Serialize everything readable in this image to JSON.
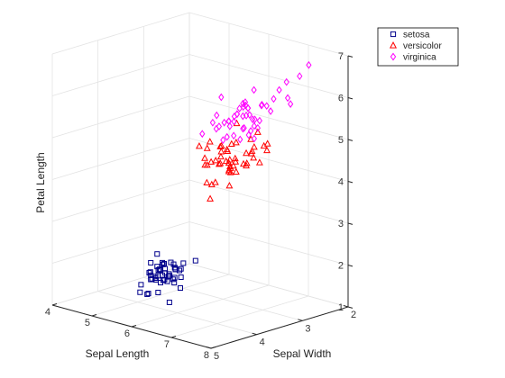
{
  "chart_data": {
    "type": "scatter3d",
    "title": "",
    "xlabel": "Sepal Length",
    "ylabel": "Sepal Width",
    "zlabel": "Petal Length",
    "xlim": [
      4,
      8
    ],
    "ylim": [
      2,
      5
    ],
    "zlim": [
      1,
      7
    ],
    "xticks": [
      4,
      5,
      6,
      7,
      8
    ],
    "yticks": [
      2,
      3,
      4,
      5
    ],
    "zticks": [
      1,
      2,
      3,
      4,
      5,
      6,
      7
    ],
    "grid": true,
    "legend_position": "top-right",
    "series": [
      {
        "name": "setosa",
        "marker": "square",
        "color": "#00008b",
        "points": [
          [
            5.1,
            3.5,
            1.4
          ],
          [
            4.9,
            3.0,
            1.4
          ],
          [
            4.7,
            3.2,
            1.3
          ],
          [
            4.6,
            3.1,
            1.5
          ],
          [
            5.0,
            3.6,
            1.4
          ],
          [
            5.4,
            3.9,
            1.7
          ],
          [
            4.6,
            3.4,
            1.4
          ],
          [
            5.0,
            3.4,
            1.5
          ],
          [
            4.4,
            2.9,
            1.4
          ],
          [
            4.9,
            3.1,
            1.5
          ],
          [
            5.4,
            3.7,
            1.5
          ],
          [
            4.8,
            3.4,
            1.6
          ],
          [
            4.8,
            3.0,
            1.4
          ],
          [
            4.3,
            3.0,
            1.1
          ],
          [
            5.8,
            4.0,
            1.2
          ],
          [
            5.7,
            4.4,
            1.5
          ],
          [
            5.4,
            3.9,
            1.3
          ],
          [
            5.1,
            3.5,
            1.4
          ],
          [
            5.7,
            3.8,
            1.7
          ],
          [
            5.1,
            3.8,
            1.5
          ],
          [
            5.4,
            3.4,
            1.7
          ],
          [
            5.1,
            3.7,
            1.5
          ],
          [
            4.6,
            3.6,
            1.0
          ],
          [
            5.1,
            3.3,
            1.7
          ],
          [
            4.8,
            3.4,
            1.9
          ],
          [
            5.0,
            3.0,
            1.6
          ],
          [
            5.0,
            3.4,
            1.6
          ],
          [
            5.2,
            3.5,
            1.5
          ],
          [
            5.2,
            3.4,
            1.4
          ],
          [
            4.7,
            3.2,
            1.6
          ],
          [
            4.8,
            3.1,
            1.6
          ],
          [
            5.4,
            3.4,
            1.5
          ],
          [
            5.2,
            4.1,
            1.5
          ],
          [
            5.5,
            4.2,
            1.4
          ],
          [
            4.9,
            3.1,
            1.5
          ],
          [
            5.0,
            3.2,
            1.2
          ],
          [
            5.5,
            3.5,
            1.3
          ],
          [
            4.9,
            3.6,
            1.4
          ],
          [
            4.4,
            3.0,
            1.3
          ],
          [
            5.1,
            3.4,
            1.5
          ],
          [
            5.0,
            3.5,
            1.3
          ],
          [
            4.5,
            2.3,
            1.3
          ],
          [
            4.4,
            3.2,
            1.3
          ],
          [
            5.0,
            3.5,
            1.6
          ],
          [
            5.1,
            3.8,
            1.9
          ],
          [
            4.8,
            3.0,
            1.4
          ],
          [
            5.1,
            3.8,
            1.6
          ],
          [
            4.6,
            3.2,
            1.4
          ],
          [
            5.3,
            3.7,
            1.5
          ],
          [
            5.0,
            3.3,
            1.4
          ]
        ]
      },
      {
        "name": "versicolor",
        "marker": "triangle",
        "color": "#ff0000",
        "points": [
          [
            7.0,
            3.2,
            4.7
          ],
          [
            6.4,
            3.2,
            4.5
          ],
          [
            6.9,
            3.1,
            4.9
          ],
          [
            5.5,
            2.3,
            4.0
          ],
          [
            6.5,
            2.8,
            4.6
          ],
          [
            5.7,
            2.8,
            4.5
          ],
          [
            6.3,
            3.3,
            4.7
          ],
          [
            4.9,
            2.4,
            3.3
          ],
          [
            6.6,
            2.9,
            4.6
          ],
          [
            5.2,
            2.7,
            3.9
          ],
          [
            5.0,
            2.0,
            3.5
          ],
          [
            5.9,
            3.0,
            4.2
          ],
          [
            6.0,
            2.2,
            4.0
          ],
          [
            6.1,
            2.9,
            4.7
          ],
          [
            5.6,
            2.9,
            3.6
          ],
          [
            6.7,
            3.1,
            4.4
          ],
          [
            5.6,
            3.0,
            4.5
          ],
          [
            5.8,
            2.7,
            4.1
          ],
          [
            6.2,
            2.2,
            4.5
          ],
          [
            5.6,
            2.5,
            3.9
          ],
          [
            5.9,
            3.2,
            4.8
          ],
          [
            6.1,
            2.8,
            4.0
          ],
          [
            6.3,
            2.5,
            4.9
          ],
          [
            6.1,
            2.8,
            4.7
          ],
          [
            6.4,
            2.9,
            4.3
          ],
          [
            6.6,
            3.0,
            4.4
          ],
          [
            6.8,
            2.8,
            4.8
          ],
          [
            6.7,
            3.0,
            5.0
          ],
          [
            6.0,
            2.9,
            4.5
          ],
          [
            5.7,
            2.6,
            3.5
          ],
          [
            5.5,
            2.4,
            3.8
          ],
          [
            5.5,
            2.4,
            3.7
          ],
          [
            5.8,
            2.7,
            3.9
          ],
          [
            6.0,
            2.7,
            5.1
          ],
          [
            5.4,
            3.0,
            4.5
          ],
          [
            6.0,
            3.4,
            4.5
          ],
          [
            6.7,
            3.1,
            4.7
          ],
          [
            6.3,
            2.3,
            4.4
          ],
          [
            5.6,
            3.0,
            4.1
          ],
          [
            5.5,
            2.5,
            4.0
          ],
          [
            5.5,
            2.6,
            4.4
          ],
          [
            6.1,
            3.0,
            4.6
          ],
          [
            5.8,
            2.6,
            4.0
          ],
          [
            5.0,
            2.3,
            3.3
          ],
          [
            5.6,
            2.7,
            4.2
          ],
          [
            5.7,
            3.0,
            4.2
          ],
          [
            5.7,
            2.9,
            4.2
          ],
          [
            6.2,
            2.9,
            4.3
          ],
          [
            5.1,
            2.5,
            3.0
          ],
          [
            5.7,
            2.8,
            4.1
          ]
        ]
      },
      {
        "name": "virginica",
        "marker": "diamond",
        "color": "#ff00ff",
        "points": [
          [
            6.3,
            3.3,
            6.0
          ],
          [
            5.8,
            2.7,
            5.1
          ],
          [
            7.1,
            3.0,
            5.9
          ],
          [
            6.3,
            2.9,
            5.6
          ],
          [
            6.5,
            3.0,
            5.8
          ],
          [
            7.6,
            3.0,
            6.6
          ],
          [
            4.9,
            2.5,
            4.5
          ],
          [
            7.3,
            2.9,
            6.3
          ],
          [
            6.7,
            2.5,
            5.8
          ],
          [
            7.2,
            3.6,
            6.1
          ],
          [
            6.5,
            3.2,
            5.1
          ],
          [
            6.4,
            2.7,
            5.3
          ],
          [
            6.8,
            3.0,
            5.5
          ],
          [
            5.7,
            2.5,
            5.0
          ],
          [
            5.8,
            2.8,
            5.1
          ],
          [
            6.4,
            3.2,
            5.3
          ],
          [
            6.5,
            3.0,
            5.5
          ],
          [
            7.7,
            3.8,
            6.7
          ],
          [
            7.7,
            2.6,
            6.9
          ],
          [
            6.0,
            2.2,
            5.0
          ],
          [
            6.9,
            3.2,
            5.7
          ],
          [
            5.6,
            2.8,
            4.9
          ],
          [
            7.7,
            2.8,
            6.7
          ],
          [
            6.3,
            2.7,
            4.9
          ],
          [
            6.7,
            3.3,
            5.7
          ],
          [
            7.2,
            3.2,
            6.0
          ],
          [
            6.2,
            2.8,
            4.8
          ],
          [
            6.1,
            3.0,
            4.9
          ],
          [
            6.4,
            2.8,
            5.6
          ],
          [
            7.2,
            3.0,
            5.8
          ],
          [
            7.4,
            2.8,
            6.1
          ],
          [
            7.9,
            3.8,
            6.4
          ],
          [
            6.4,
            2.8,
            5.6
          ],
          [
            6.3,
            2.8,
            5.1
          ],
          [
            6.1,
            2.6,
            5.6
          ],
          [
            7.7,
            3.0,
            6.1
          ],
          [
            6.3,
            3.4,
            5.6
          ],
          [
            6.4,
            3.1,
            5.5
          ],
          [
            6.0,
            3.0,
            4.8
          ],
          [
            6.9,
            3.1,
            5.4
          ],
          [
            6.7,
            3.1,
            5.6
          ],
          [
            6.9,
            3.1,
            5.1
          ],
          [
            5.8,
            2.7,
            5.1
          ],
          [
            6.8,
            3.2,
            5.9
          ],
          [
            6.7,
            3.3,
            5.7
          ],
          [
            6.7,
            3.0,
            5.2
          ],
          [
            6.3,
            2.5,
            5.0
          ],
          [
            6.5,
            3.0,
            5.2
          ],
          [
            6.2,
            3.4,
            5.4
          ],
          [
            5.9,
            3.0,
            5.1
          ]
        ]
      }
    ]
  }
}
